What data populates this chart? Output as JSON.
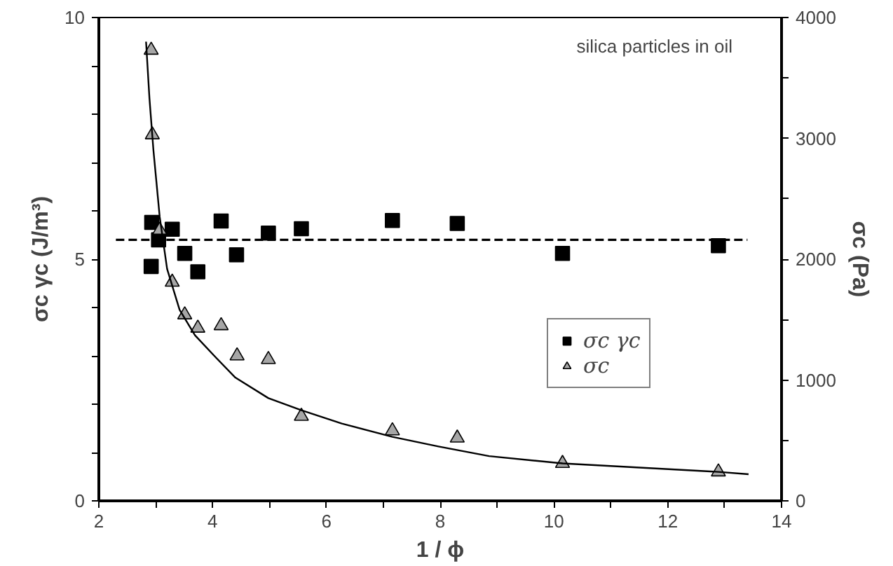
{
  "chart_data": {
    "type": "scatter",
    "xlabel": "1 / ϕ",
    "ylabel": "σc γc (J/m³)",
    "y2label": "σc (Pa)",
    "annotations": [
      "silica particles in oil"
    ],
    "xlim": [
      2,
      14
    ],
    "ylim": [
      0,
      10
    ],
    "y2lim": [
      0,
      4000
    ],
    "xticks": [
      2,
      {
        "value": 3,
        "label": null
      },
      4,
      {
        "value": 5,
        "label": null
      },
      6,
      {
        "value": 7,
        "label": null
      },
      8,
      {
        "value": 9,
        "label": null
      },
      10,
      {
        "value": 11,
        "label": null
      },
      12,
      {
        "value": 13,
        "label": null
      },
      14
    ],
    "yticks": [
      0,
      {
        "value": 1,
        "label": null
      },
      {
        "value": 2,
        "label": null
      },
      {
        "value": 3,
        "label": null
      },
      {
        "value": 4,
        "label": null
      },
      5,
      {
        "value": 6,
        "label": null
      },
      {
        "value": 7,
        "label": null
      },
      {
        "value": 8,
        "label": null
      },
      {
        "value": 9,
        "label": null
      },
      10
    ],
    "y2ticks": [
      0,
      {
        "value": 500,
        "label": null
      },
      1000,
      {
        "value": 1500,
        "label": null
      },
      2000,
      {
        "value": 2500,
        "label": null
      },
      3000,
      {
        "value": 3500,
        "label": null
      },
      4000
    ],
    "grid": false,
    "legend": "right",
    "series": [
      {
        "name": "σc γc",
        "marker": "square",
        "color": "#000000",
        "x": [
          2.93,
          2.92,
          3.05,
          3.29,
          3.51,
          3.74,
          4.15,
          4.42,
          4.98,
          5.56,
          7.16,
          8.3,
          10.15,
          12.89
        ],
        "values": [
          5.76,
          4.85,
          5.4,
          5.62,
          5.12,
          4.74,
          5.79,
          5.09,
          5.54,
          5.63,
          5.8,
          5.74,
          5.12,
          5.28
        ]
      },
      {
        "name": "σc",
        "marker": "triangle",
        "color": "#a6a6a6",
        "axis": "y2",
        "x": [
          2.92,
          2.94,
          3.07,
          3.29,
          3.51,
          3.74,
          4.15,
          4.43,
          4.98,
          5.56,
          7.16,
          8.3,
          10.15,
          12.89
        ],
        "values": [
          3730,
          3030,
          2240,
          1810,
          1540,
          1430,
          1450,
          1200,
          1170,
          700,
          580,
          520,
          310,
          240
        ]
      },
      {
        "type": "line",
        "line_style": "dashed",
        "color": "#000000",
        "x": [
          2.3,
          13.4
        ],
        "values": [
          5.4,
          5.4
        ]
      },
      {
        "type": "line",
        "line_style": "solid",
        "color": "#000000",
        "axis": "y2",
        "x": [
          2.83,
          2.89,
          2.96,
          3.07,
          3.2,
          3.42,
          3.69,
          4.05,
          4.4,
          4.98,
          5.56,
          6.27,
          7.16,
          7.97,
          8.86,
          10.15,
          12.89,
          13.42
        ],
        "values": [
          3800,
          3330,
          2900,
          2350,
          1920,
          1580,
          1370,
          1190,
          1020,
          850,
          750,
          640,
          530,
          450,
          370,
          310,
          240,
          220
        ]
      }
    ]
  }
}
